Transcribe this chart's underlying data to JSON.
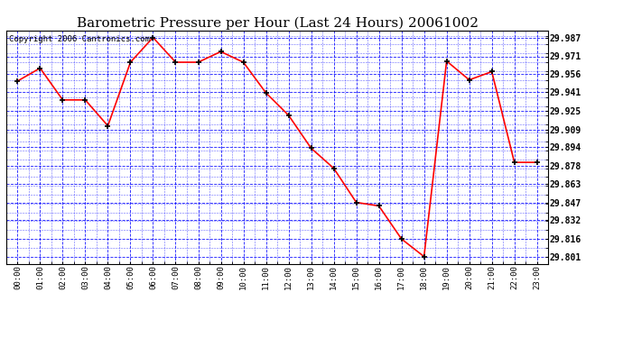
{
  "title": "Barometric Pressure per Hour (Last 24 Hours) 20061002",
  "copyright": "Copyright 2006 Cantronics.com",
  "xlabels": [
    "00:00",
    "01:00",
    "02:00",
    "03:00",
    "04:00",
    "05:00",
    "06:00",
    "07:00",
    "08:00",
    "09:00",
    "10:00",
    "11:00",
    "12:00",
    "13:00",
    "14:00",
    "15:00",
    "16:00",
    "17:00",
    "18:00",
    "19:00",
    "20:00",
    "21:00",
    "22:00",
    "23:00"
  ],
  "values": [
    29.95,
    29.961,
    29.934,
    29.934,
    29.912,
    29.966,
    29.987,
    29.966,
    29.966,
    29.975,
    29.966,
    29.94,
    29.921,
    29.893,
    29.876,
    29.847,
    29.844,
    29.816,
    29.801,
    29.967,
    29.951,
    29.958,
    29.881,
    29.881
  ],
  "yticks": [
    29.801,
    29.816,
    29.832,
    29.847,
    29.863,
    29.878,
    29.894,
    29.909,
    29.925,
    29.941,
    29.956,
    29.971,
    29.987
  ],
  "ymin": 29.795,
  "ymax": 29.993,
  "line_color": "red",
  "marker_color": "black",
  "bg_color": "white",
  "grid_color": "blue",
  "title_fontsize": 11,
  "copyright_fontsize": 6.5
}
